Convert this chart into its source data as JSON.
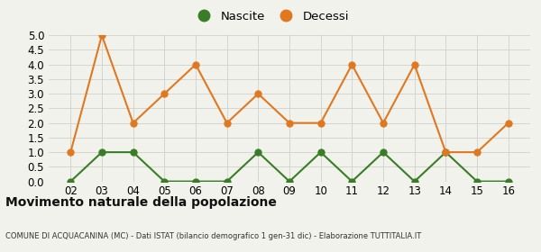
{
  "x_labels": [
    "02",
    "03",
    "04",
    "05",
    "06",
    "07",
    "08",
    "09",
    "10",
    "11",
    "12",
    "13",
    "14",
    "15",
    "16"
  ],
  "nascite": [
    0,
    1,
    1,
    0,
    0,
    0,
    1,
    0,
    1,
    0,
    1,
    0,
    1,
    0,
    0
  ],
  "decessi": [
    1,
    5,
    2,
    3,
    4,
    2,
    3,
    2,
    2,
    4,
    2,
    4,
    1,
    1,
    2
  ],
  "nascite_color": "#3a7d27",
  "decessi_color": "#e07820",
  "ylim": [
    0,
    5.0
  ],
  "title": "Movimento naturale della popolazione",
  "subtitle": "COMUNE DI ACQUACANINA (MC) - Dati ISTAT (bilancio demografico 1 gen-31 dic) - Elaborazione TUTTITALIA.IT",
  "legend_nascite": "Nascite",
  "legend_decessi": "Decessi",
  "background_color": "#f2f2ec",
  "grid_color": "#d0d0cc",
  "marker_size": 5,
  "line_width": 1.5
}
